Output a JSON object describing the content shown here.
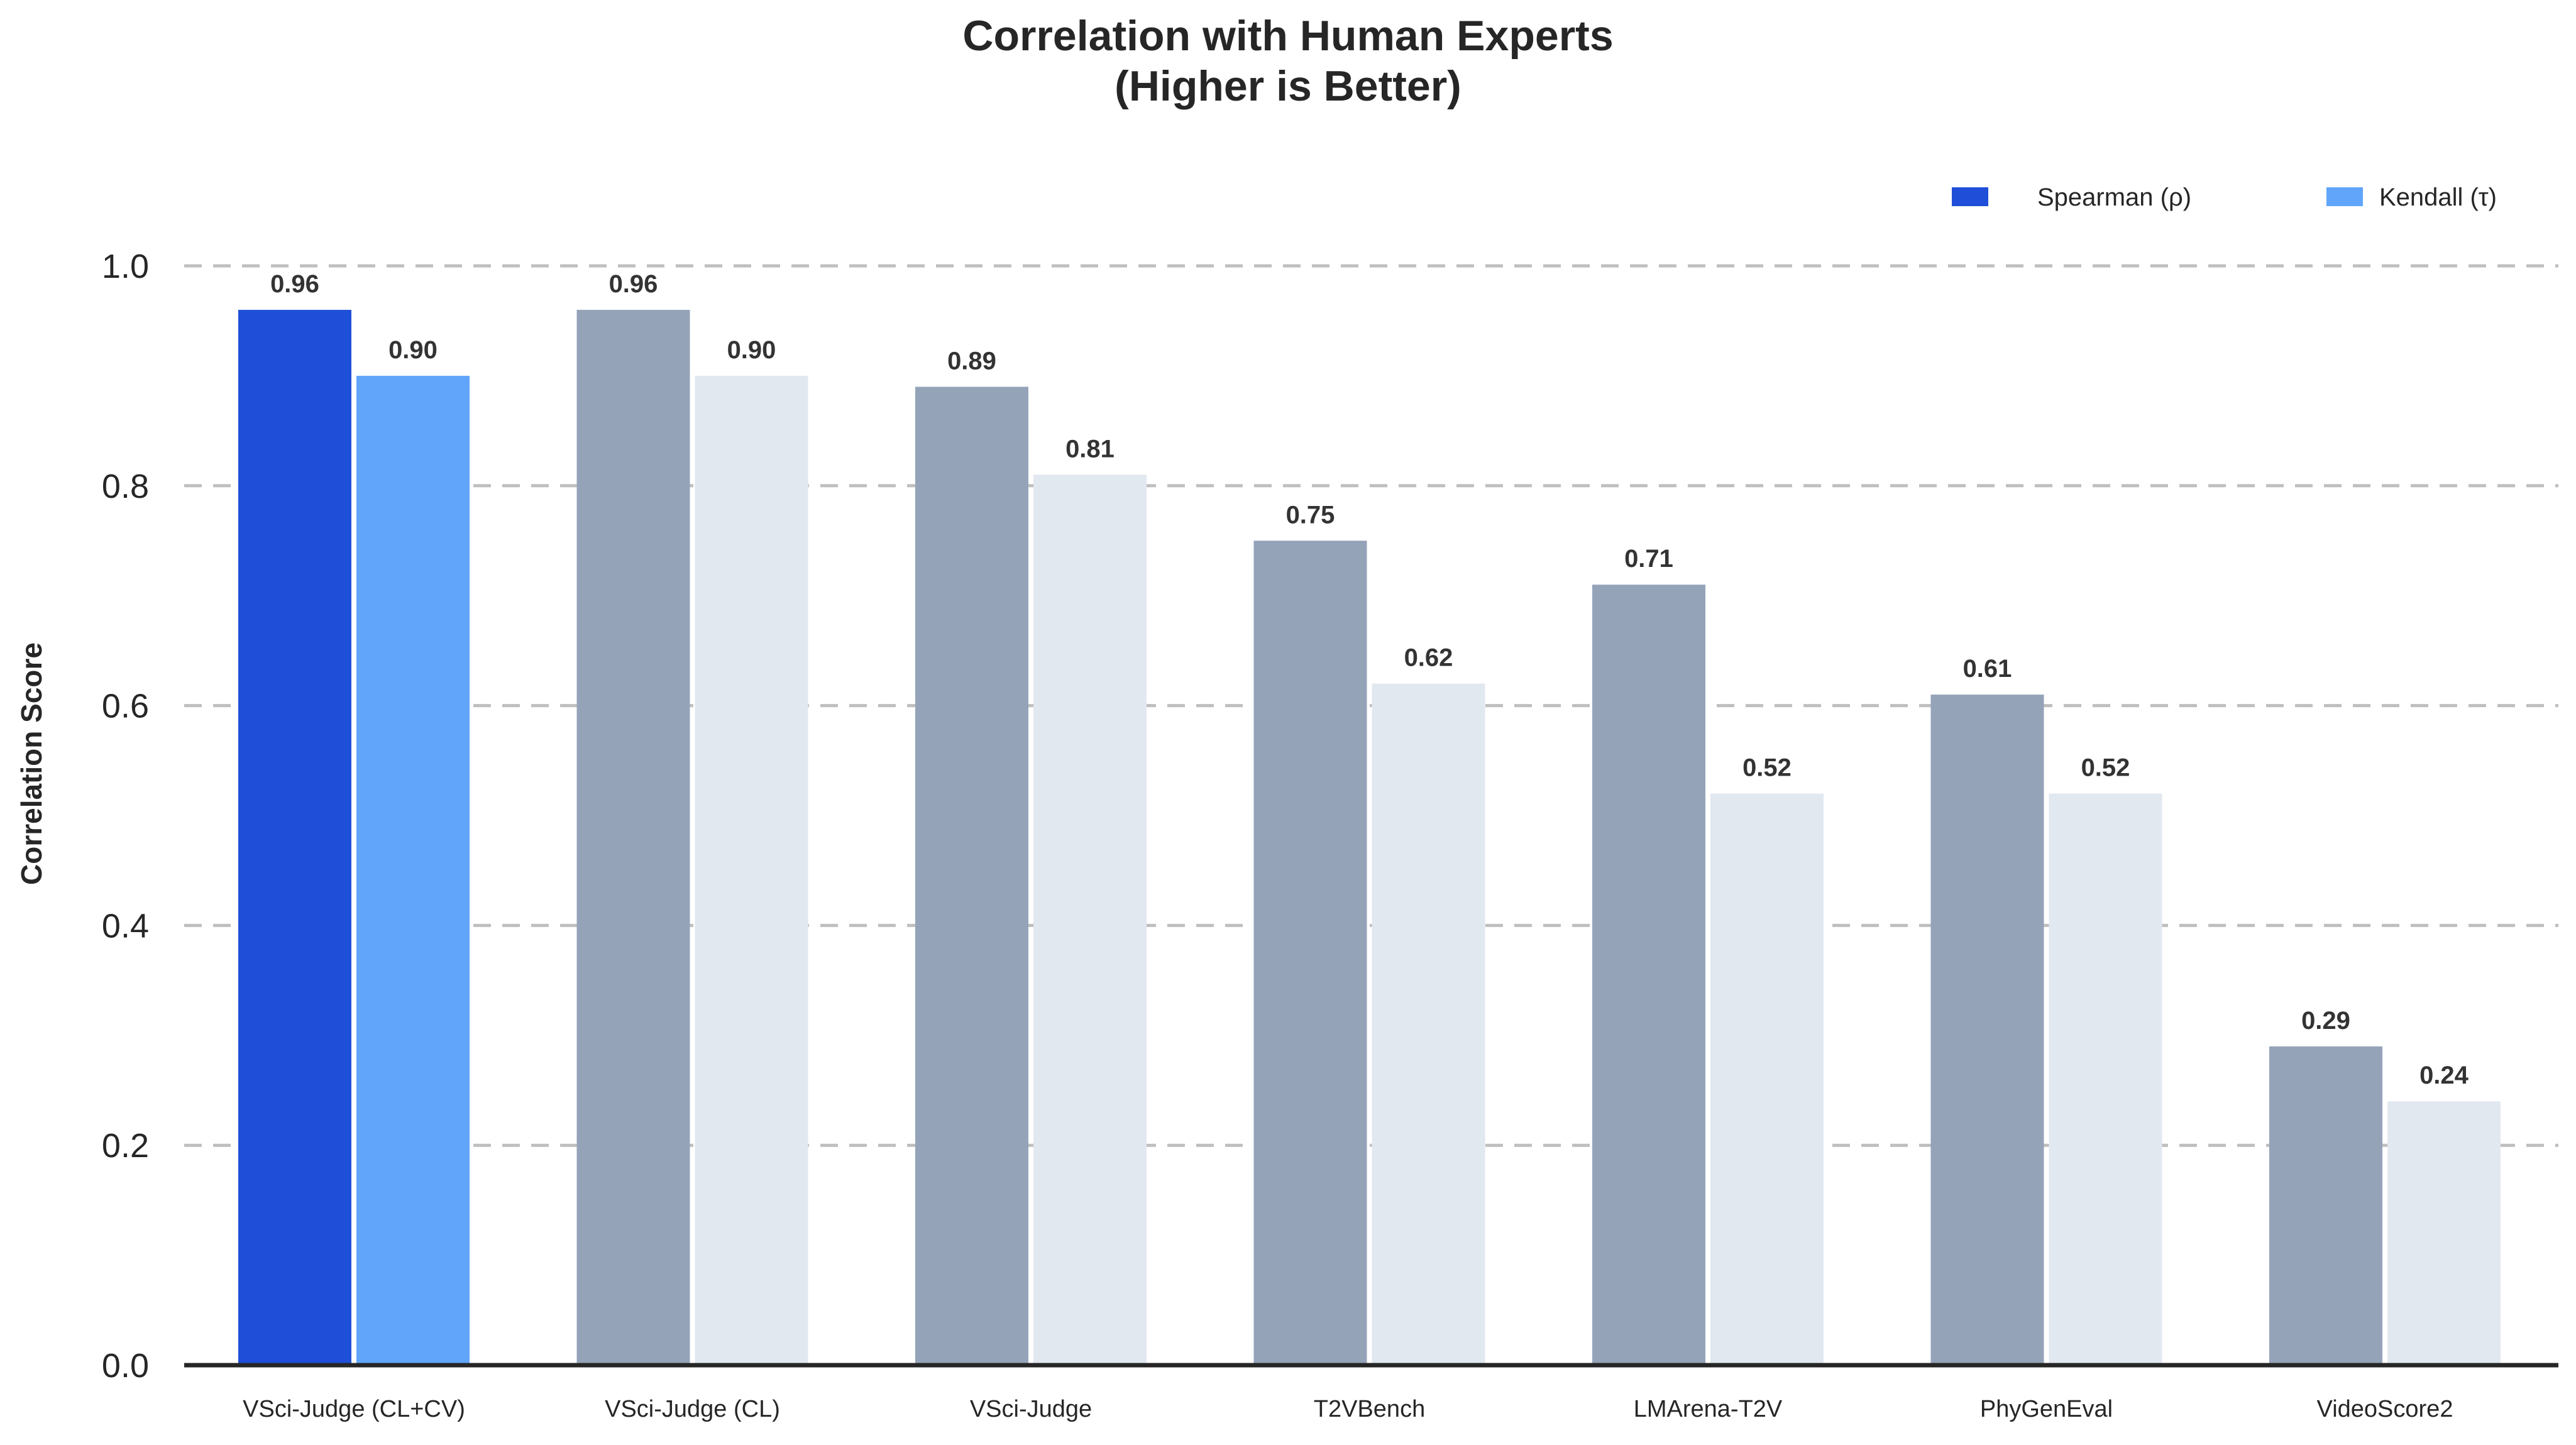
{
  "chart_data": {
    "type": "bar",
    "title_lines": [
      "Correlation with Human Experts",
      "(Higher is Better)"
    ],
    "xlabel": "",
    "ylabel": "Correlation Score",
    "ylim": [
      0,
      1.0
    ],
    "yticks": [
      "0.0",
      "0.2",
      "0.4",
      "0.6",
      "0.8",
      "1.0"
    ],
    "grid": "horizontal dashed",
    "legend_position": "top-right",
    "categories": [
      "VSci-Judge (CL+CV)",
      "VSci-Judge (CL)",
      "VSci-Judge",
      "T2VBench",
      "LMArena-T2V",
      "PhyGenEval",
      "VideoScore2"
    ],
    "series": [
      {
        "name": "Spearman (ρ)",
        "values": [
          0.96,
          0.96,
          0.89,
          0.75,
          0.71,
          0.61,
          0.29
        ],
        "labels": [
          "0.96",
          "0.96",
          "0.89",
          "0.75",
          "0.71",
          "0.61",
          "0.29"
        ]
      },
      {
        "name": "Kendall (τ)",
        "values": [
          0.9,
          0.9,
          0.81,
          0.62,
          0.52,
          0.52,
          0.24
        ],
        "labels": [
          "0.90",
          "0.90",
          "0.81",
          "0.62",
          "0.52",
          "0.52",
          "0.24"
        ]
      }
    ],
    "colors": {
      "highlight_spearman": "#1f4fd8",
      "highlight_kendall": "#60a5fa",
      "other_spearman": "#94a3b8",
      "other_kendall": "#e2e8f0",
      "grid": "#bfbfbf",
      "axis": "#262626"
    },
    "highlighted_category_index": 0
  }
}
